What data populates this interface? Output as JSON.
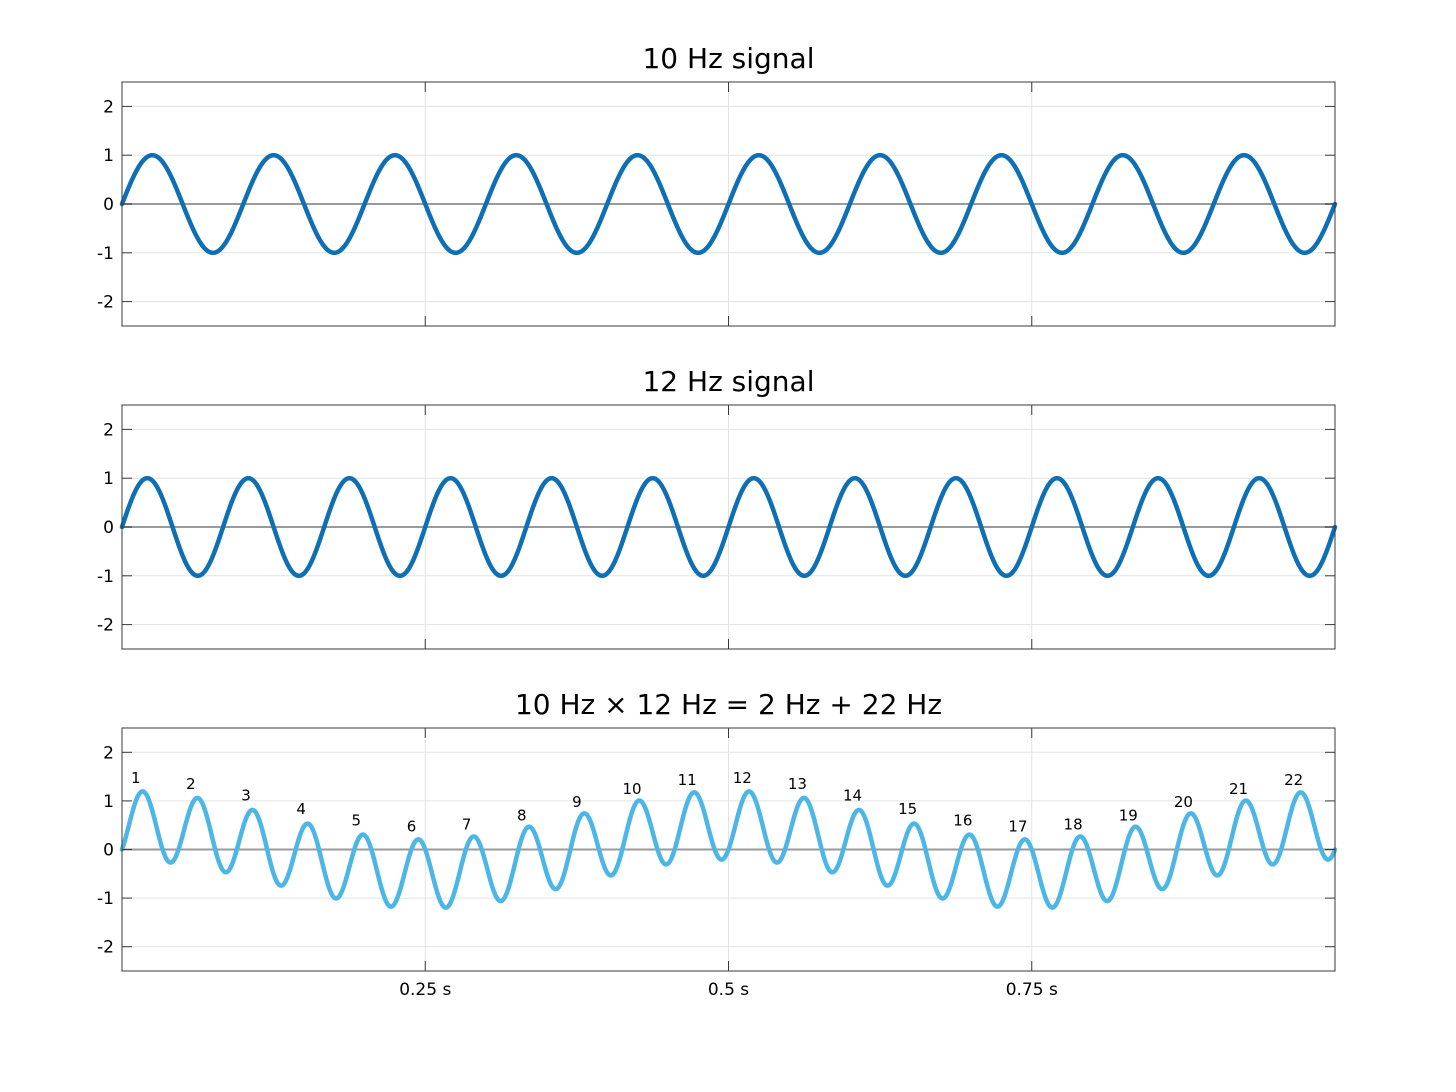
{
  "chart_data": [
    {
      "type": "line",
      "title": "10 Hz signal",
      "xlim": [
        0,
        1
      ],
      "ylim": [
        -2.5,
        2.5
      ],
      "yticks": [
        2,
        1,
        0,
        -1,
        -2
      ],
      "ytick_labels": [
        "2",
        "1",
        "0",
        "-1",
        "-2"
      ],
      "xticks": [
        0.25,
        0.5,
        0.75
      ],
      "xtick_labels": [],
      "grid": true,
      "series": [
        {
          "function": "sin(2*pi*10*t)",
          "frequencies_hz": [
            10
          ],
          "color": "#0e6fb5"
        }
      ]
    },
    {
      "type": "line",
      "title": "12 Hz signal",
      "xlim": [
        0,
        1
      ],
      "ylim": [
        -2.5,
        2.5
      ],
      "yticks": [
        2,
        1,
        0,
        -1,
        -2
      ],
      "ytick_labels": [
        "2",
        "1",
        "0",
        "-1",
        "-2"
      ],
      "xticks": [
        0.25,
        0.5,
        0.75
      ],
      "xtick_labels": [],
      "grid": true,
      "series": [
        {
          "function": "sin(2*pi*12*t)",
          "frequencies_hz": [
            12
          ],
          "color": "#0e6fb5"
        }
      ]
    },
    {
      "type": "line",
      "title": "10 Hz × 12 Hz = 2 Hz + 22 Hz",
      "xlim": [
        0,
        1
      ],
      "ylim": [
        -2.5,
        2.5
      ],
      "yticks": [
        2,
        1,
        0,
        -1,
        -2
      ],
      "ytick_labels": [
        "2",
        "1",
        "0",
        "-1",
        "-2"
      ],
      "xticks": [
        0.25,
        0.5,
        0.75
      ],
      "xtick_labels": [
        "0.25 s",
        "0.5 s",
        "0.75 s"
      ],
      "grid": true,
      "series": [
        {
          "function": "sin(2*pi*10*t)*sin(2*pi*12*t) + sin(2*pi*22*t)/2",
          "frequencies_hz": [
            2,
            22
          ],
          "color": "#4cb6e6"
        }
      ],
      "peak_labels": [
        "1",
        "2",
        "3",
        "4",
        "5",
        "6",
        "7",
        "8",
        "9",
        "10",
        "11",
        "12",
        "13",
        "14",
        "15",
        "16",
        "17",
        "18",
        "19",
        "20",
        "21",
        "22"
      ]
    }
  ]
}
